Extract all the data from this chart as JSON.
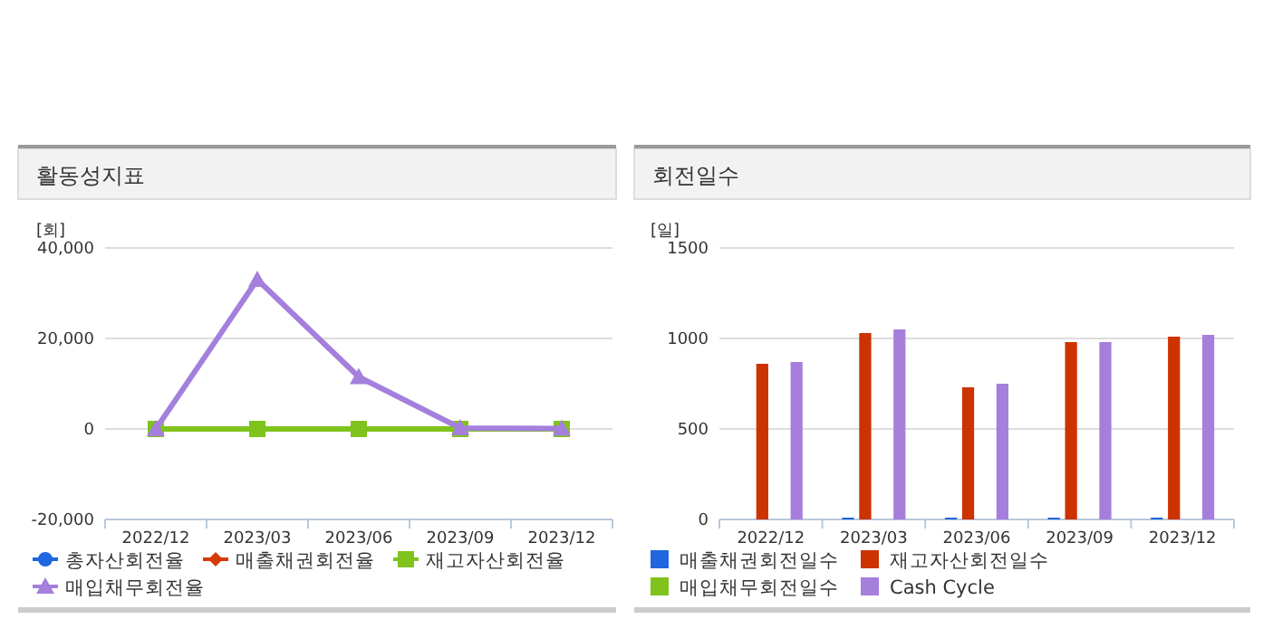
{
  "chart_data": [
    {
      "type": "line",
      "title": "활동성지표",
      "ylabel": "[회]",
      "categories": [
        "2022/12",
        "2023/03",
        "2023/06",
        "2023/09",
        "2023/12"
      ],
      "ylim": [
        -20000,
        40000
      ],
      "yticks": [
        {
          "value": -20000,
          "label": "-20,000"
        },
        {
          "value": 0,
          "label": "0"
        },
        {
          "value": 20000,
          "label": "20,000"
        },
        {
          "value": 40000,
          "label": "40,000"
        }
      ],
      "grid": "y",
      "legend": "bottom",
      "series": [
        {
          "name": "총자산회전율",
          "color": "#1f66e0",
          "marker": "circle",
          "values": [
            null,
            null,
            null,
            null,
            null
          ]
        },
        {
          "name": "매출채권회전율",
          "color": "#d63a0a",
          "marker": "diamond",
          "values": [
            null,
            null,
            null,
            null,
            null
          ]
        },
        {
          "name": "재고자산회전율",
          "color": "#7fc31c",
          "marker": "square",
          "values": [
            0,
            0,
            0,
            0,
            0
          ]
        },
        {
          "name": "매입채무회전율",
          "color": "#a47fdc",
          "marker": "triangle",
          "values": [
            0,
            33000,
            11500,
            200,
            100
          ]
        }
      ]
    },
    {
      "type": "bar",
      "title": "회전일수",
      "ylabel": "[일]",
      "categories": [
        "2022/12",
        "2023/03",
        "2023/06",
        "2023/09",
        "2023/12"
      ],
      "ylim": [
        0,
        1500
      ],
      "yticks": [
        0,
        500,
        1000,
        1500
      ],
      "grid": "y",
      "legend": "bottom",
      "series": [
        {
          "name": "매출채권회전일수",
          "color": "#1f66e0",
          "values": [
            0,
            10,
            10,
            10,
            10
          ]
        },
        {
          "name": "재고자산회전일수",
          "color": "#cc3300",
          "values": [
            860,
            1030,
            730,
            980,
            1010
          ]
        },
        {
          "name": "매입채무회전일수",
          "color": "#7fc31c",
          "values": [
            0,
            0,
            0,
            0,
            0
          ]
        },
        {
          "name": "Cash Cycle",
          "color": "#a67fdc",
          "values": [
            870,
            1050,
            750,
            980,
            1020
          ]
        }
      ]
    }
  ]
}
